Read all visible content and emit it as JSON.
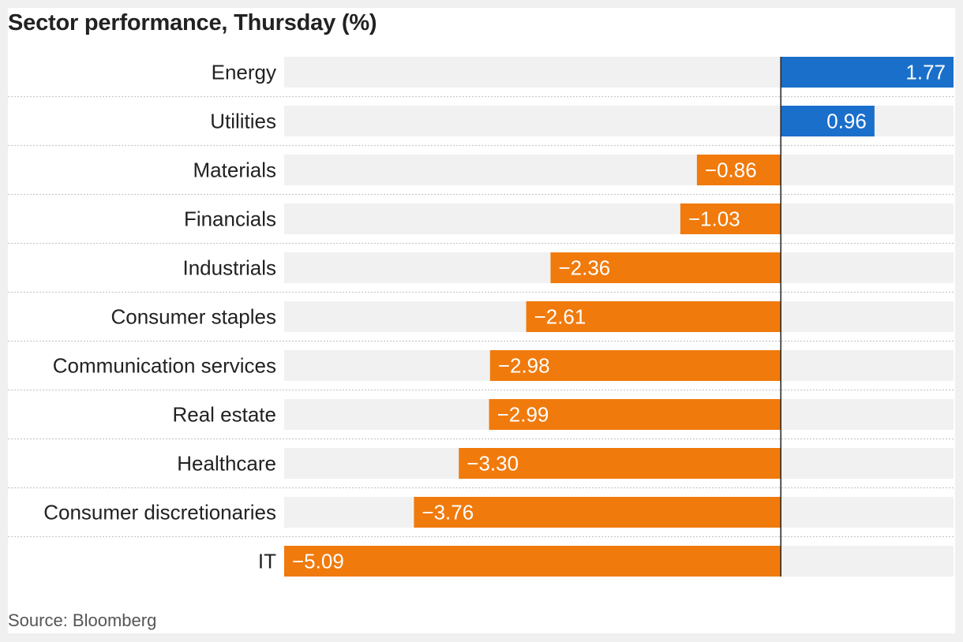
{
  "chart_data": {
    "type": "bar",
    "orientation": "horizontal",
    "title": "Sector performance, Thursday (%)",
    "categories": [
      "Energy",
      "Utilities",
      "Materials",
      "Financials",
      "Industrials",
      "Consumer staples",
      "Communication services",
      "Real estate",
      "Healthcare",
      "Consumer discretionaries",
      "IT"
    ],
    "values": [
      1.77,
      0.96,
      -0.86,
      -1.03,
      -2.36,
      -2.61,
      -2.98,
      -2.99,
      -3.3,
      -3.76,
      -5.09
    ],
    "value_labels": [
      "1.77",
      "0.96",
      "−0.86",
      "−1.03",
      "−2.36",
      "−2.61",
      "−2.98",
      "−2.99",
      "−3.30",
      "−3.76",
      "−5.09"
    ],
    "xlim": [
      -5.09,
      1.77
    ],
    "colors": {
      "positive": "#1a6fcb",
      "negative": "#f07a0c",
      "track": "#f1f1f1",
      "zero_line": "#222222",
      "separator": "#c8c8c8"
    },
    "grid": false,
    "legend": "none"
  },
  "source": "Source: Bloomberg"
}
